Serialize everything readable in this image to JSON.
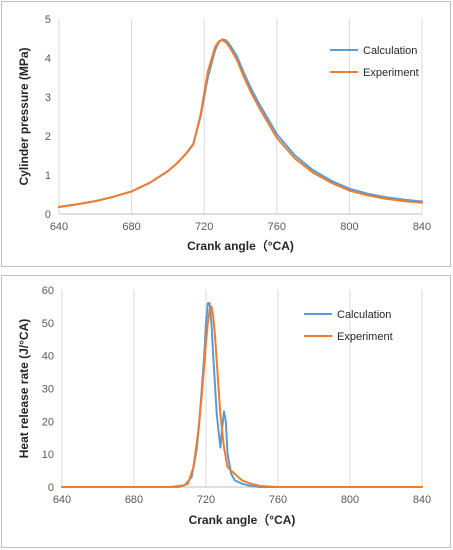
{
  "chart_data": [
    {
      "type": "line",
      "xlabel": "Crank angle（°CA)",
      "ylabel": "Cylinder pressure (MPa)",
      "xlim": [
        640,
        840
      ],
      "ylim": [
        0,
        5
      ],
      "xticks": [
        "640",
        "680",
        "720",
        "760",
        "800",
        "840"
      ],
      "yticks": [
        "0",
        "1",
        "2",
        "3",
        "4",
        "5"
      ],
      "grid": "vertical",
      "legend": "right",
      "series": [
        {
          "name": "Calculation",
          "color": "#5b9bd5",
          "x": [
            640,
            650,
            660,
            670,
            680,
            690,
            700,
            705,
            710,
            714,
            718,
            722,
            726,
            728,
            730,
            732,
            734,
            738,
            742,
            746,
            750,
            760,
            770,
            780,
            790,
            800,
            810,
            820,
            830,
            840
          ],
          "y": [
            0.18,
            0.25,
            0.33,
            0.44,
            0.58,
            0.8,
            1.1,
            1.3,
            1.55,
            1.8,
            2.5,
            3.5,
            4.2,
            4.4,
            4.48,
            4.45,
            4.35,
            4.05,
            3.6,
            3.2,
            2.85,
            2.05,
            1.5,
            1.12,
            0.85,
            0.65,
            0.52,
            0.43,
            0.37,
            0.32
          ]
        },
        {
          "name": "Experiment",
          "color": "#ed7d31",
          "x": [
            640,
            650,
            660,
            670,
            680,
            690,
            700,
            705,
            710,
            714,
            718,
            722,
            726,
            728,
            730,
            732,
            734,
            738,
            742,
            746,
            750,
            760,
            770,
            780,
            790,
            800,
            810,
            820,
            830,
            840
          ],
          "y": [
            0.18,
            0.25,
            0.33,
            0.44,
            0.58,
            0.8,
            1.1,
            1.3,
            1.55,
            1.78,
            2.55,
            3.65,
            4.28,
            4.42,
            4.46,
            4.4,
            4.28,
            3.95,
            3.5,
            3.1,
            2.75,
            1.95,
            1.42,
            1.06,
            0.8,
            0.6,
            0.48,
            0.39,
            0.33,
            0.29
          ]
        }
      ]
    },
    {
      "type": "line",
      "xlabel": "Crank angle（°CA)",
      "ylabel": "Heat release rate (J/°CA)",
      "xlim": [
        640,
        840
      ],
      "ylim": [
        0,
        60
      ],
      "xticks": [
        "640",
        "680",
        "720",
        "760",
        "800",
        "840"
      ],
      "yticks": [
        "0",
        "10",
        "20",
        "30",
        "40",
        "50",
        "60"
      ],
      "grid": "vertical",
      "legend": "right",
      "series": [
        {
          "name": "Calculation",
          "color": "#5b9bd5",
          "x": [
            640,
            700,
            708,
            712,
            715,
            717,
            719,
            720,
            721,
            722,
            723,
            724,
            726,
            728,
            729,
            730,
            731,
            732,
            734,
            736,
            740,
            745,
            750,
            760,
            800,
            840
          ],
          "y": [
            0,
            0,
            0.5,
            3,
            12,
            25,
            40,
            50,
            56,
            56,
            50,
            40,
            22,
            12,
            18,
            23,
            20,
            10,
            4,
            2,
            1,
            0.3,
            0,
            0,
            0,
            0
          ]
        },
        {
          "name": "Experiment",
          "color": "#ed7d31",
          "x": [
            640,
            705,
            710,
            713,
            716,
            718,
            720,
            721,
            722,
            723,
            724,
            725,
            726,
            727,
            728,
            730,
            732,
            734,
            736,
            738,
            740,
            745,
            750,
            760,
            800,
            840
          ],
          "y": [
            0,
            0,
            1,
            6,
            18,
            30,
            44,
            50,
            54,
            55,
            52,
            46,
            38,
            30,
            22,
            12,
            6,
            5,
            4,
            3,
            2,
            1,
            0.3,
            0,
            0,
            0
          ]
        }
      ]
    }
  ]
}
